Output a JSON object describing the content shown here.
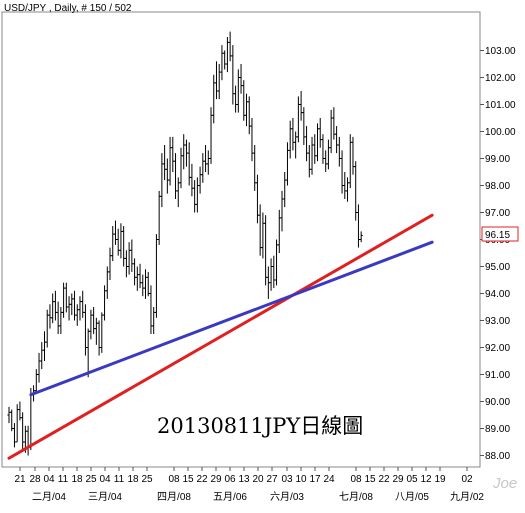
{
  "chart_data": {
    "type": "ohlc",
    "title": "USD/JPY , Daily, # 150 / 502",
    "annotation": "20130811JPY日線圖",
    "watermark": "Joe",
    "current_price_label": "96.15",
    "ylim": [
      87.5,
      103.9
    ],
    "y_ticks": [
      88.0,
      89.0,
      90.0,
      91.0,
      92.0,
      93.0,
      94.0,
      95.0,
      96.0,
      97.0,
      98.0,
      99.0,
      100.0,
      101.0,
      102.0,
      103.0
    ],
    "x_tick_labels": [
      "21",
      "28",
      "04",
      "11",
      "18",
      "25",
      "04",
      "11",
      "18",
      "25",
      "08",
      "15",
      "22",
      "29",
      "06",
      "13",
      "20",
      "27",
      "03",
      "10",
      "17",
      "24",
      "08",
      "15",
      "22",
      "29",
      "05",
      "12",
      "19",
      "02"
    ],
    "month_labels": [
      "二月/04",
      "三月/04",
      "四月/08",
      "五月/06",
      "六月/03",
      "七月/08",
      "八月/05",
      "九月/02"
    ],
    "trendlines": [
      {
        "color": "#e02020",
        "from": {
          "bar": 0,
          "price": 87.9
        },
        "to": {
          "bar": 155,
          "price": 96.9
        }
      },
      {
        "color": "#3a3ac0",
        "from": {
          "bar": 8,
          "price": 90.25
        },
        "to": {
          "bar": 155,
          "price": 95.9
        }
      }
    ],
    "series": [
      {
        "name": "",
        "ohlc": [
          [
            89.5,
            89.8,
            89.2,
            89.6
          ],
          [
            89.6,
            89.7,
            88.9,
            89.0
          ],
          [
            89.0,
            89.2,
            88.3,
            88.5
          ],
          [
            88.5,
            89.9,
            88.5,
            89.7
          ],
          [
            89.7,
            90.0,
            89.3,
            89.4
          ],
          [
            89.4,
            89.6,
            88.2,
            88.5
          ],
          [
            88.5,
            89.1,
            88.1,
            88.9
          ],
          [
            88.9,
            89.1,
            88.0,
            88.3
          ],
          [
            88.3,
            90.5,
            88.2,
            90.3
          ],
          [
            90.3,
            90.6,
            90.0,
            90.4
          ],
          [
            90.4,
            91.2,
            90.3,
            91.0
          ],
          [
            91.0,
            91.8,
            90.7,
            91.5
          ],
          [
            91.5,
            92.2,
            91.2,
            91.9
          ],
          [
            91.9,
            92.6,
            91.5,
            92.2
          ],
          [
            92.2,
            93.4,
            92.0,
            93.2
          ],
          [
            93.2,
            93.6,
            92.7,
            93.1
          ],
          [
            93.1,
            94.0,
            92.9,
            93.7
          ],
          [
            93.7,
            94.1,
            93.0,
            93.3
          ],
          [
            93.3,
            93.7,
            92.5,
            92.8
          ],
          [
            92.8,
            93.5,
            92.5,
            93.3
          ],
          [
            93.3,
            94.4,
            93.1,
            94.2
          ],
          [
            94.2,
            94.4,
            93.3,
            93.5
          ],
          [
            93.5,
            93.9,
            93.0,
            93.6
          ],
          [
            93.6,
            94.0,
            93.2,
            93.8
          ],
          [
            93.8,
            94.1,
            93.0,
            93.2
          ],
          [
            93.2,
            93.6,
            92.8,
            93.4
          ],
          [
            93.4,
            93.9,
            93.0,
            93.7
          ],
          [
            93.7,
            94.1,
            93.1,
            93.3
          ],
          [
            93.3,
            93.6,
            91.7,
            92.0
          ],
          [
            92.0,
            92.7,
            90.9,
            92.6
          ],
          [
            92.6,
            93.4,
            92.3,
            93.2
          ],
          [
            93.2,
            93.5,
            92.5,
            92.7
          ],
          [
            92.7,
            93.1,
            92.1,
            92.9
          ],
          [
            92.9,
            93.0,
            91.7,
            92.0
          ],
          [
            92.0,
            93.3,
            91.8,
            93.2
          ],
          [
            93.2,
            94.3,
            93.0,
            94.1
          ],
          [
            94.1,
            95.0,
            93.8,
            94.8
          ],
          [
            94.8,
            95.7,
            94.5,
            95.4
          ],
          [
            95.4,
            96.5,
            95.2,
            96.2
          ],
          [
            96.2,
            96.7,
            95.8,
            96.0
          ],
          [
            96.0,
            96.4,
            95.4,
            95.6
          ],
          [
            95.6,
            96.6,
            95.3,
            96.3
          ],
          [
            96.3,
            96.5,
            95.0,
            95.3
          ],
          [
            95.3,
            95.6,
            94.6,
            95.0
          ],
          [
            95.0,
            95.9,
            94.7,
            95.6
          ],
          [
            95.6,
            96.0,
            94.8,
            95.1
          ],
          [
            95.1,
            95.3,
            94.3,
            94.6
          ],
          [
            94.6,
            95.0,
            94.1,
            94.7
          ],
          [
            94.7,
            95.1,
            94.2,
            94.4
          ],
          [
            94.4,
            94.7,
            93.9,
            94.2
          ],
          [
            94.2,
            94.9,
            93.8,
            94.6
          ],
          [
            94.6,
            94.8,
            93.9,
            94.0
          ],
          [
            94.0,
            94.3,
            92.5,
            92.8
          ],
          [
            92.8,
            93.5,
            92.5,
            93.3
          ],
          [
            93.3,
            96.2,
            93.1,
            96.0
          ],
          [
            96.0,
            97.8,
            95.8,
            97.6
          ],
          [
            97.6,
            99.2,
            97.2,
            98.8
          ],
          [
            98.8,
            99.5,
            98.2,
            98.6
          ],
          [
            98.6,
            99.0,
            97.7,
            98.2
          ],
          [
            98.2,
            99.8,
            98.0,
            99.4
          ],
          [
            99.4,
            99.8,
            98.5,
            98.9
          ],
          [
            98.9,
            99.2,
            97.5,
            97.8
          ],
          [
            97.8,
            98.3,
            97.2,
            98.1
          ],
          [
            98.1,
            99.4,
            97.9,
            99.1
          ],
          [
            99.1,
            99.9,
            98.6,
            99.5
          ],
          [
            99.5,
            99.7,
            98.7,
            99.2
          ],
          [
            99.2,
            99.6,
            98.0,
            98.3
          ],
          [
            98.3,
            98.8,
            97.6,
            97.9
          ],
          [
            97.9,
            98.2,
            97.0,
            97.3
          ],
          [
            97.3,
            98.3,
            97.0,
            98.0
          ],
          [
            98.0,
            98.7,
            97.7,
            98.4
          ],
          [
            98.4,
            99.2,
            98.1,
            98.9
          ],
          [
            98.9,
            99.5,
            98.5,
            98.8
          ],
          [
            98.8,
            99.3,
            98.4,
            99.0
          ],
          [
            99.0,
            100.9,
            98.8,
            100.6
          ],
          [
            100.6,
            102.1,
            100.3,
            101.8
          ],
          [
            101.8,
            102.6,
            101.2,
            101.5
          ],
          [
            101.5,
            102.5,
            101.2,
            102.2
          ],
          [
            102.2,
            103.2,
            101.9,
            102.9
          ],
          [
            102.9,
            103.0,
            102.3,
            102.5
          ],
          [
            102.5,
            103.5,
            102.2,
            103.3
          ],
          [
            103.3,
            103.7,
            102.6,
            102.8
          ],
          [
            102.8,
            103.2,
            101.0,
            101.4
          ],
          [
            101.4,
            101.7,
            100.7,
            101.0
          ],
          [
            101.0,
            102.3,
            100.7,
            102.0
          ],
          [
            102.0,
            102.5,
            101.4,
            101.7
          ],
          [
            101.7,
            101.9,
            100.4,
            100.6
          ],
          [
            100.6,
            101.4,
            100.2,
            101.1
          ],
          [
            101.1,
            101.3,
            99.9,
            100.2
          ],
          [
            100.2,
            100.5,
            98.9,
            99.2
          ],
          [
            99.2,
            99.5,
            97.8,
            98.1
          ],
          [
            98.1,
            98.4,
            96.6,
            96.9
          ],
          [
            96.9,
            97.3,
            95.4,
            95.7
          ],
          [
            95.7,
            97.0,
            95.3,
            96.6
          ],
          [
            96.6,
            96.9,
            94.3,
            94.6
          ],
          [
            94.6,
            95.0,
            93.8,
            94.4
          ],
          [
            94.4,
            95.3,
            94.1,
            95.0
          ],
          [
            95.0,
            95.4,
            94.2,
            94.5
          ],
          [
            94.5,
            96.0,
            94.3,
            95.8
          ],
          [
            95.8,
            97.1,
            95.5,
            96.8
          ],
          [
            96.8,
            97.8,
            96.3,
            97.5
          ],
          [
            97.5,
            98.5,
            97.2,
            98.2
          ],
          [
            98.2,
            99.6,
            98.0,
            99.3
          ],
          [
            99.3,
            100.4,
            99.0,
            100.1
          ],
          [
            100.1,
            100.5,
            99.3,
            99.6
          ],
          [
            99.6,
            100.0,
            99.0,
            99.8
          ],
          [
            99.8,
            101.3,
            99.6,
            101.0
          ],
          [
            101.0,
            101.5,
            100.4,
            100.7
          ],
          [
            100.7,
            100.9,
            99.5,
            99.8
          ],
          [
            99.8,
            100.2,
            98.9,
            99.2
          ],
          [
            99.2,
            99.5,
            98.3,
            98.6
          ],
          [
            98.6,
            99.8,
            98.4,
            99.5
          ],
          [
            99.5,
            99.9,
            98.8,
            99.1
          ],
          [
            99.1,
            100.3,
            98.9,
            100.1
          ],
          [
            100.1,
            100.5,
            99.4,
            99.7
          ],
          [
            99.7,
            99.9,
            98.8,
            99.0
          ],
          [
            99.0,
            99.3,
            98.5,
            98.8
          ],
          [
            98.8,
            99.7,
            98.6,
            99.4
          ],
          [
            99.4,
            100.8,
            99.2,
            100.5
          ],
          [
            100.5,
            100.9,
            99.7,
            99.9
          ],
          [
            99.9,
            100.2,
            99.2,
            99.5
          ],
          [
            99.5,
            99.8,
            98.7,
            99.0
          ],
          [
            99.0,
            99.3,
            97.7,
            98.0
          ],
          [
            98.0,
            98.5,
            97.5,
            97.8
          ],
          [
            97.8,
            98.3,
            97.4,
            98.1
          ],
          [
            98.1,
            99.9,
            97.9,
            99.6
          ],
          [
            99.6,
            99.8,
            98.4,
            98.7
          ],
          [
            98.7,
            98.9,
            96.7,
            97.0
          ],
          [
            97.0,
            97.3,
            95.7,
            96.0
          ],
          [
            96.0,
            96.3,
            95.9,
            96.15
          ]
        ]
      }
    ]
  }
}
